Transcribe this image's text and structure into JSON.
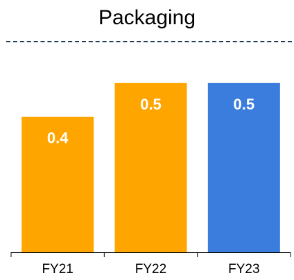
{
  "chart_data": {
    "type": "bar",
    "title": "Packaging",
    "categories": [
      "FY21",
      "FY22",
      "FY23"
    ],
    "values": [
      0.4,
      0.5,
      0.5
    ],
    "data_labels": [
      "0.4",
      "0.5",
      "0.5"
    ],
    "colors": [
      "#FFA500",
      "#FFA500",
      "#3B7DDD"
    ],
    "ylim": [
      0,
      0.6
    ],
    "grid": false,
    "legend": "none",
    "xlabel": "",
    "ylabel": ""
  }
}
